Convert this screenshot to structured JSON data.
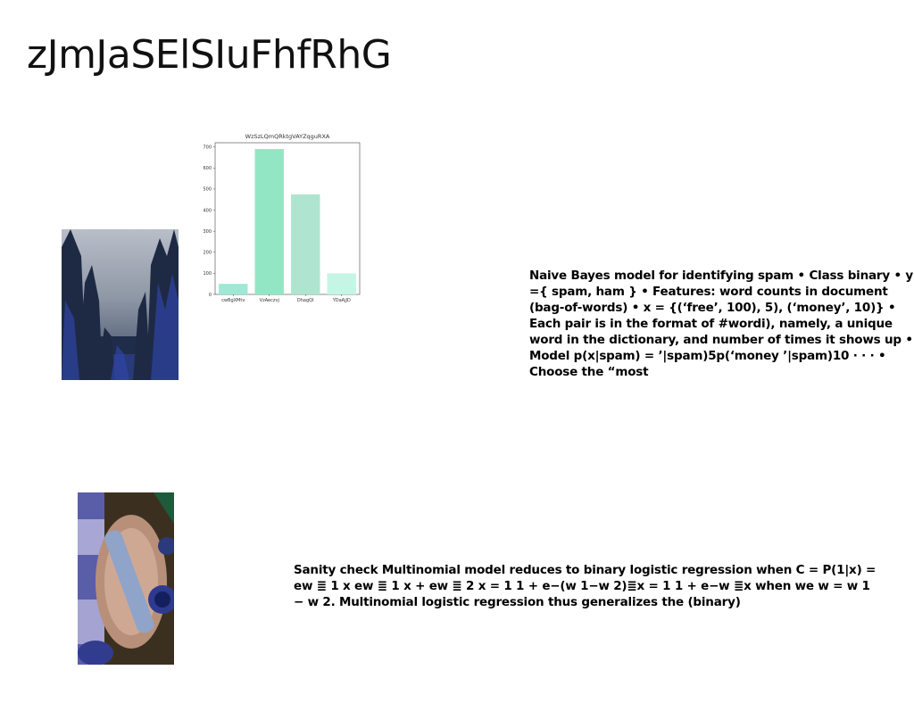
{
  "slide": {
    "title": "zJmJaSElSIuFhfRhG"
  },
  "text_blocks": {
    "spam_model": "Naive Bayes model for identifying spam • Class binary • y ={ spam, ham } • Features: word counts in document (bag-of-words) • x = {(‘free’, 100), 5), (‘money’, 10)} • Each pair is in the format of #wordi), namely, a unique word in the dictionary, and number of times it shows up • Model p(x|spam) = ’|spam)5p(‘money ’|spam)10 · · · • Choose the “most",
    "sanity_check": "Sanity check Multinomial model reduces to binary logistic regression when C = P(1|x) = ew ≣ 1 x ew ≣ 1 x + ew ≣ 2 x = 1 1 + e−(w 1−w 2)≣x = 1 1 + e−w ≣x when we w = w 1 − w 2. Multinomial logistic regression thus generalizes the (binary)"
  },
  "images": {
    "forest_photo": "forest",
    "table_photo": "tableware"
  },
  "chart_data": {
    "type": "bar",
    "title": "WzSzLQmQRktgVAYZqguRXA",
    "categories": [
      "cwBgXMtv",
      "VzAeczvj",
      "DhagQI",
      "YDaAjJD"
    ],
    "values": [
      50,
      690,
      475,
      100
    ],
    "colors": [
      "#9ee8d5",
      "#92e6c3",
      "#aee4d0",
      "#c5f6e5"
    ],
    "ylim": [
      0,
      720
    ],
    "yticks": [
      0,
      100,
      200,
      300,
      400,
      500,
      600,
      700
    ],
    "xlabel": "",
    "ylabel": "",
    "grid": false
  }
}
